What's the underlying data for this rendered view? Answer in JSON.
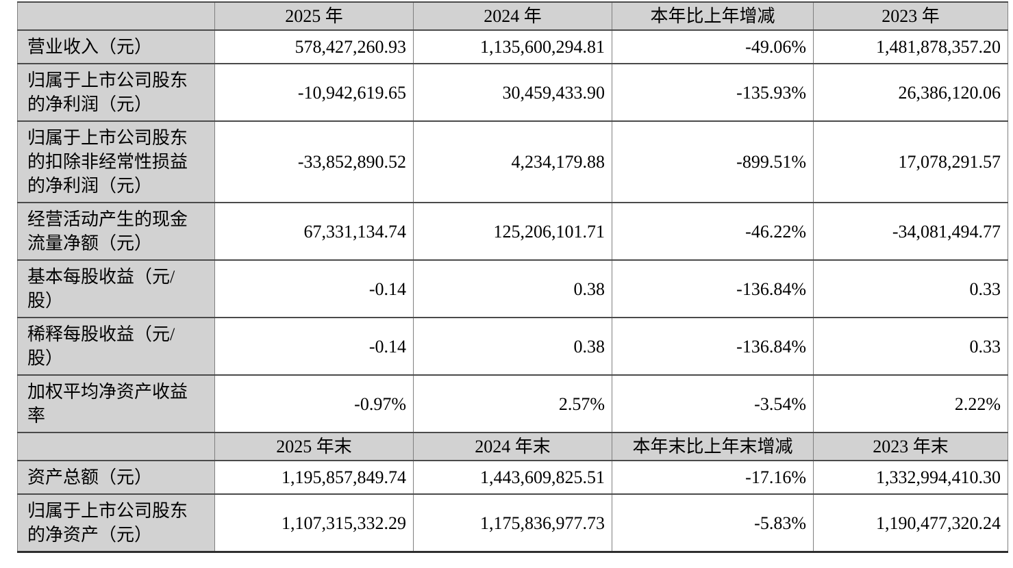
{
  "document": {
    "kind": "financial-key-figures-table",
    "colors": {
      "page_background": "#ffffff",
      "header_bg": "#d2d2d2",
      "label_bg": "#d2d2d2",
      "data_cell_bg": "#ffffff",
      "grid_vertical": "#7f7f7f",
      "grid_horizontal": "#4a4a4a",
      "outer_bottom_rule": "#2e2e2e",
      "text": "#000000"
    }
  },
  "table": {
    "rows": [
      {
        "kind": "header",
        "cells": [
          "",
          "2025 年",
          "2024 年",
          "本年比上年增减",
          "2023 年"
        ]
      },
      {
        "kind": "data",
        "label": "营业收入（元）",
        "values": [
          "578,427,260.93",
          "1,135,600,294.81",
          "-49.06%",
          "1,481,878,357.20"
        ]
      },
      {
        "kind": "data",
        "label": "归属于上市公司股东\n的净利润（元）",
        "values": [
          "-10,942,619.65",
          "30,459,433.90",
          "-135.93%",
          "26,386,120.06"
        ]
      },
      {
        "kind": "data",
        "label": "归属于上市公司股东\n的扣除非经常性损益\n的净利润（元）",
        "values": [
          "-33,852,890.52",
          "4,234,179.88",
          "-899.51%",
          "17,078,291.57"
        ]
      },
      {
        "kind": "data",
        "label": "经营活动产生的现金\n流量净额（元）",
        "values": [
          "67,331,134.74",
          "125,206,101.71",
          "-46.22%",
          "-34,081,494.77"
        ]
      },
      {
        "kind": "data",
        "label": "基本每股收益（元/\n股）",
        "values": [
          "-0.14",
          "0.38",
          "-136.84%",
          "0.33"
        ]
      },
      {
        "kind": "data",
        "label": "稀释每股收益（元/\n股）",
        "values": [
          "-0.14",
          "0.38",
          "-136.84%",
          "0.33"
        ]
      },
      {
        "kind": "data",
        "label": "加权平均净资产收益\n率",
        "values": [
          "-0.97%",
          "2.57%",
          "-3.54%",
          "2.22%"
        ]
      },
      {
        "kind": "header",
        "cells": [
          "",
          "2025 年末",
          "2024 年末",
          "本年末比上年末增减",
          "2023 年末"
        ]
      },
      {
        "kind": "data",
        "label": "资产总额（元）",
        "values": [
          "1,195,857,849.74",
          "1,443,609,825.51",
          "-17.16%",
          "1,332,994,410.30"
        ]
      },
      {
        "kind": "data",
        "label": "归属于上市公司股东\n的净资产（元）",
        "values": [
          "1,107,315,332.29",
          "1,175,836,977.73",
          "-5.83%",
          "1,190,477,320.24"
        ]
      }
    ]
  }
}
